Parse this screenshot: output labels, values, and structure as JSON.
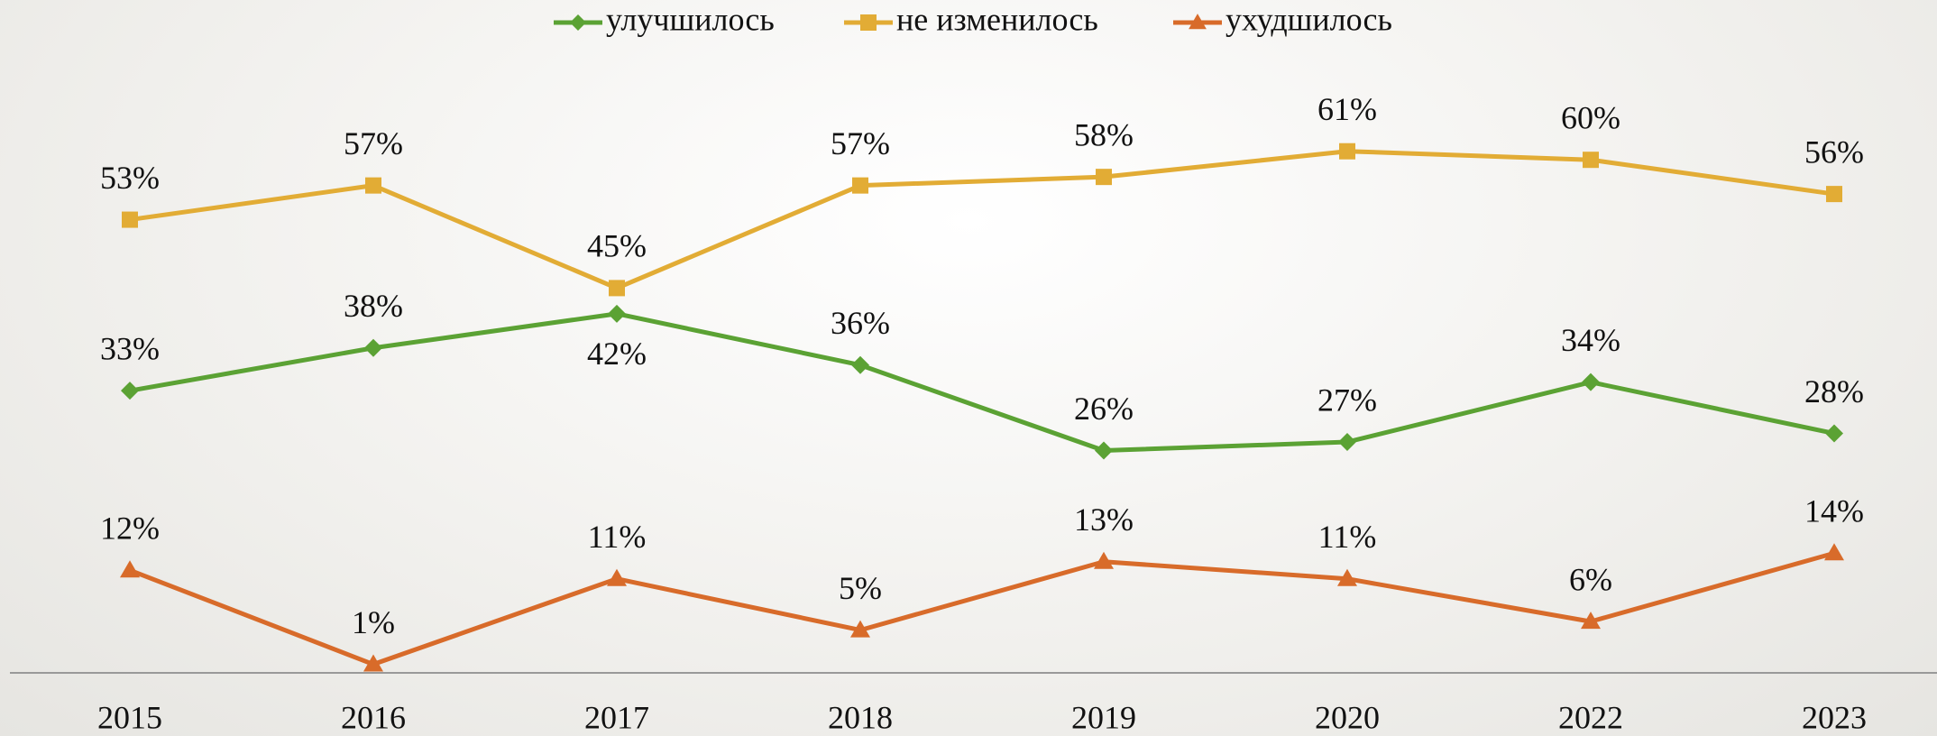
{
  "chart_data": {
    "type": "line",
    "categories": [
      "2015",
      "2016",
      "2017",
      "2018",
      "2019",
      "2020",
      "2022",
      "2023"
    ],
    "series": [
      {
        "name": "улучшилось",
        "color": "#5ba234",
        "marker": "diamond",
        "values": [
          33,
          38,
          42,
          36,
          26,
          27,
          34,
          28
        ],
        "value_labels": [
          "33%",
          "38%",
          "42%",
          "36%",
          "26%",
          "27%",
          "34%",
          "28%"
        ]
      },
      {
        "name": "не изменилось",
        "color": "#e2ac35",
        "marker": "square",
        "values": [
          53,
          57,
          45,
          57,
          58,
          61,
          60,
          56
        ],
        "value_labels": [
          "53%",
          "57%",
          "45%",
          "57%",
          "58%",
          "61%",
          "60%",
          "56%"
        ]
      },
      {
        "name": "ухудшилось",
        "color": "#d86b2a",
        "marker": "triangle",
        "values": [
          12,
          1,
          11,
          5,
          13,
          11,
          6,
          14
        ],
        "value_labels": [
          "12%",
          "1%",
          "11%",
          "5%",
          "13%",
          "11%",
          "6%",
          "14%"
        ]
      }
    ],
    "legend": "top",
    "grid": false
  }
}
